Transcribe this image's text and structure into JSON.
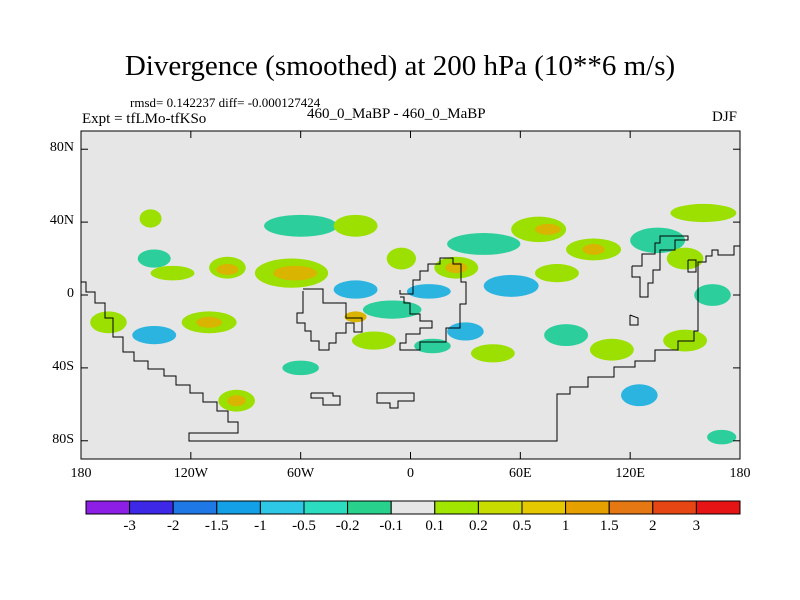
{
  "title": "Divergence (smoothed) at 200 hPa (10**6 m/s)",
  "stats": "rmsd= 0.142237 diff= -0.000127424",
  "experiment": "Expt = tfLMo-tfKSo",
  "runs": "460_0_MaBP - 460_0_MaBP",
  "season": "DJF",
  "map": {
    "lon_range": [
      -180,
      180
    ],
    "lat_range": [
      -90,
      90
    ],
    "background_color": "#e6e6e6",
    "y_ticks": [
      {
        "lat": 80,
        "label": "80N"
      },
      {
        "lat": 40,
        "label": "40N"
      },
      {
        "lat": 0,
        "label": "0"
      },
      {
        "lat": -40,
        "label": "40S"
      },
      {
        "lat": -80,
        "label": "80S"
      }
    ],
    "x_ticks": [
      {
        "lon": -180,
        "label": "180"
      },
      {
        "lon": -120,
        "label": "120W"
      },
      {
        "lon": -60,
        "label": "60W"
      },
      {
        "lon": 0,
        "label": "0"
      },
      {
        "lon": 60,
        "label": "60E"
      },
      {
        "lon": 120,
        "label": "120E"
      },
      {
        "lon": 180,
        "label": "180"
      }
    ],
    "blobs": [
      {
        "lon": -142,
        "lat": 42,
        "rlon": 6,
        "rlat": 5,
        "color": "#9be000"
      },
      {
        "lon": -140,
        "lat": 20,
        "rlon": 9,
        "rlat": 5,
        "color": "#2ccf9b"
      },
      {
        "lon": -130,
        "lat": 12,
        "rlon": 12,
        "rlat": 4,
        "color": "#9be000"
      },
      {
        "lon": -100,
        "lat": 15,
        "rlon": 10,
        "rlat": 6,
        "color": "#9be000"
      },
      {
        "lon": -100,
        "lat": 14,
        "rlon": 6,
        "rlat": 3,
        "color": "#d9b400"
      },
      {
        "lon": -65,
        "lat": 12,
        "rlon": 20,
        "rlat": 8,
        "color": "#9be000"
      },
      {
        "lon": -63,
        "lat": 12,
        "rlon": 12,
        "rlat": 4,
        "color": "#d9b400"
      },
      {
        "lon": -60,
        "lat": 38,
        "rlon": 20,
        "rlat": 6,
        "color": "#2ccf9b"
      },
      {
        "lon": -30,
        "lat": 38,
        "rlon": 12,
        "rlat": 6,
        "color": "#9be000"
      },
      {
        "lon": -5,
        "lat": 20,
        "rlon": 8,
        "rlat": 6,
        "color": "#9be000"
      },
      {
        "lon": -30,
        "lat": 3,
        "rlon": 12,
        "rlat": 5,
        "color": "#2cb4e0"
      },
      {
        "lon": -10,
        "lat": -8,
        "rlon": 16,
        "rlat": 5,
        "color": "#2ccf9b"
      },
      {
        "lon": 10,
        "lat": 2,
        "rlon": 12,
        "rlat": 4,
        "color": "#2cb4e0"
      },
      {
        "lon": 25,
        "lat": 15,
        "rlon": 12,
        "rlat": 6,
        "color": "#9be000"
      },
      {
        "lon": 25,
        "lat": 15,
        "rlon": 6,
        "rlat": 3,
        "color": "#d9b400"
      },
      {
        "lon": 40,
        "lat": 28,
        "rlon": 20,
        "rlat": 6,
        "color": "#2ccf9b"
      },
      {
        "lon": 70,
        "lat": 36,
        "rlon": 15,
        "rlat": 7,
        "color": "#9be000"
      },
      {
        "lon": 75,
        "lat": 36,
        "rlon": 7,
        "rlat": 3,
        "color": "#d9b400"
      },
      {
        "lon": 55,
        "lat": 5,
        "rlon": 15,
        "rlat": 6,
        "color": "#2cb4e0"
      },
      {
        "lon": 80,
        "lat": 12,
        "rlon": 12,
        "rlat": 5,
        "color": "#9be000"
      },
      {
        "lon": 100,
        "lat": 25,
        "rlon": 15,
        "rlat": 6,
        "color": "#9be000"
      },
      {
        "lon": 100,
        "lat": 25,
        "rlon": 6,
        "rlat": 3,
        "color": "#d9b400"
      },
      {
        "lon": 135,
        "lat": 30,
        "rlon": 15,
        "rlat": 7,
        "color": "#2ccf9b"
      },
      {
        "lon": 150,
        "lat": 20,
        "rlon": 10,
        "rlat": 6,
        "color": "#9be000"
      },
      {
        "lon": 160,
        "lat": 45,
        "rlon": 18,
        "rlat": 5,
        "color": "#9be000"
      },
      {
        "lon": 165,
        "lat": 0,
        "rlon": 10,
        "rlat": 6,
        "color": "#2ccf9b"
      },
      {
        "lon": -165,
        "lat": -15,
        "rlon": 10,
        "rlat": 6,
        "color": "#9be000"
      },
      {
        "lon": -140,
        "lat": -22,
        "rlon": 12,
        "rlat": 5,
        "color": "#2cb4e0"
      },
      {
        "lon": -110,
        "lat": -15,
        "rlon": 15,
        "rlat": 6,
        "color": "#9be000"
      },
      {
        "lon": -110,
        "lat": -15,
        "rlon": 7,
        "rlat": 3,
        "color": "#d9b400"
      },
      {
        "lon": -95,
        "lat": -58,
        "rlon": 10,
        "rlat": 6,
        "color": "#9be000"
      },
      {
        "lon": -95,
        "lat": -58,
        "rlon": 5,
        "rlat": 3,
        "color": "#d9b400"
      },
      {
        "lon": -60,
        "lat": -40,
        "rlon": 10,
        "rlat": 4,
        "color": "#2ccf9b"
      },
      {
        "lon": -20,
        "lat": -25,
        "rlon": 12,
        "rlat": 5,
        "color": "#9be000"
      },
      {
        "lon": 30,
        "lat": -20,
        "rlon": 10,
        "rlat": 5,
        "color": "#2cb4e0"
      },
      {
        "lon": 45,
        "lat": -32,
        "rlon": 12,
        "rlat": 5,
        "color": "#9be000"
      },
      {
        "lon": 85,
        "lat": -22,
        "rlon": 12,
        "rlat": 6,
        "color": "#2ccf9b"
      },
      {
        "lon": 110,
        "lat": -30,
        "rlon": 12,
        "rlat": 6,
        "color": "#9be000"
      },
      {
        "lon": 125,
        "lat": -55,
        "rlon": 10,
        "rlat": 6,
        "color": "#2cb4e0"
      },
      {
        "lon": 150,
        "lat": -25,
        "rlon": 12,
        "rlat": 6,
        "color": "#9be000"
      },
      {
        "lon": 170,
        "lat": -78,
        "rlon": 8,
        "rlat": 4,
        "color": "#2ccf9b"
      },
      {
        "lon": -30,
        "lat": -12,
        "rlon": 6,
        "rlat": 3,
        "color": "#d9b400"
      },
      {
        "lon": 12,
        "lat": -28,
        "rlon": 10,
        "rlat": 4,
        "color": "#2ccf9b"
      }
    ]
  },
  "colorbar": {
    "colors": [
      "#8c1ee6",
      "#3c28e6",
      "#1e78e6",
      "#14a0e6",
      "#2cc8e6",
      "#2cdcc0",
      "#28d28c",
      "#e6e6e6",
      "#a0e600",
      "#c8dc00",
      "#e6c800",
      "#e6a000",
      "#e67814",
      "#e64614",
      "#e61414"
    ],
    "labels": [
      "-3",
      "-2",
      "-1.5",
      "-1",
      "-0.5",
      "-0.2",
      "-0.1",
      "0.1",
      "0.2",
      "0.5",
      "1",
      "1.5",
      "2",
      "3"
    ]
  }
}
